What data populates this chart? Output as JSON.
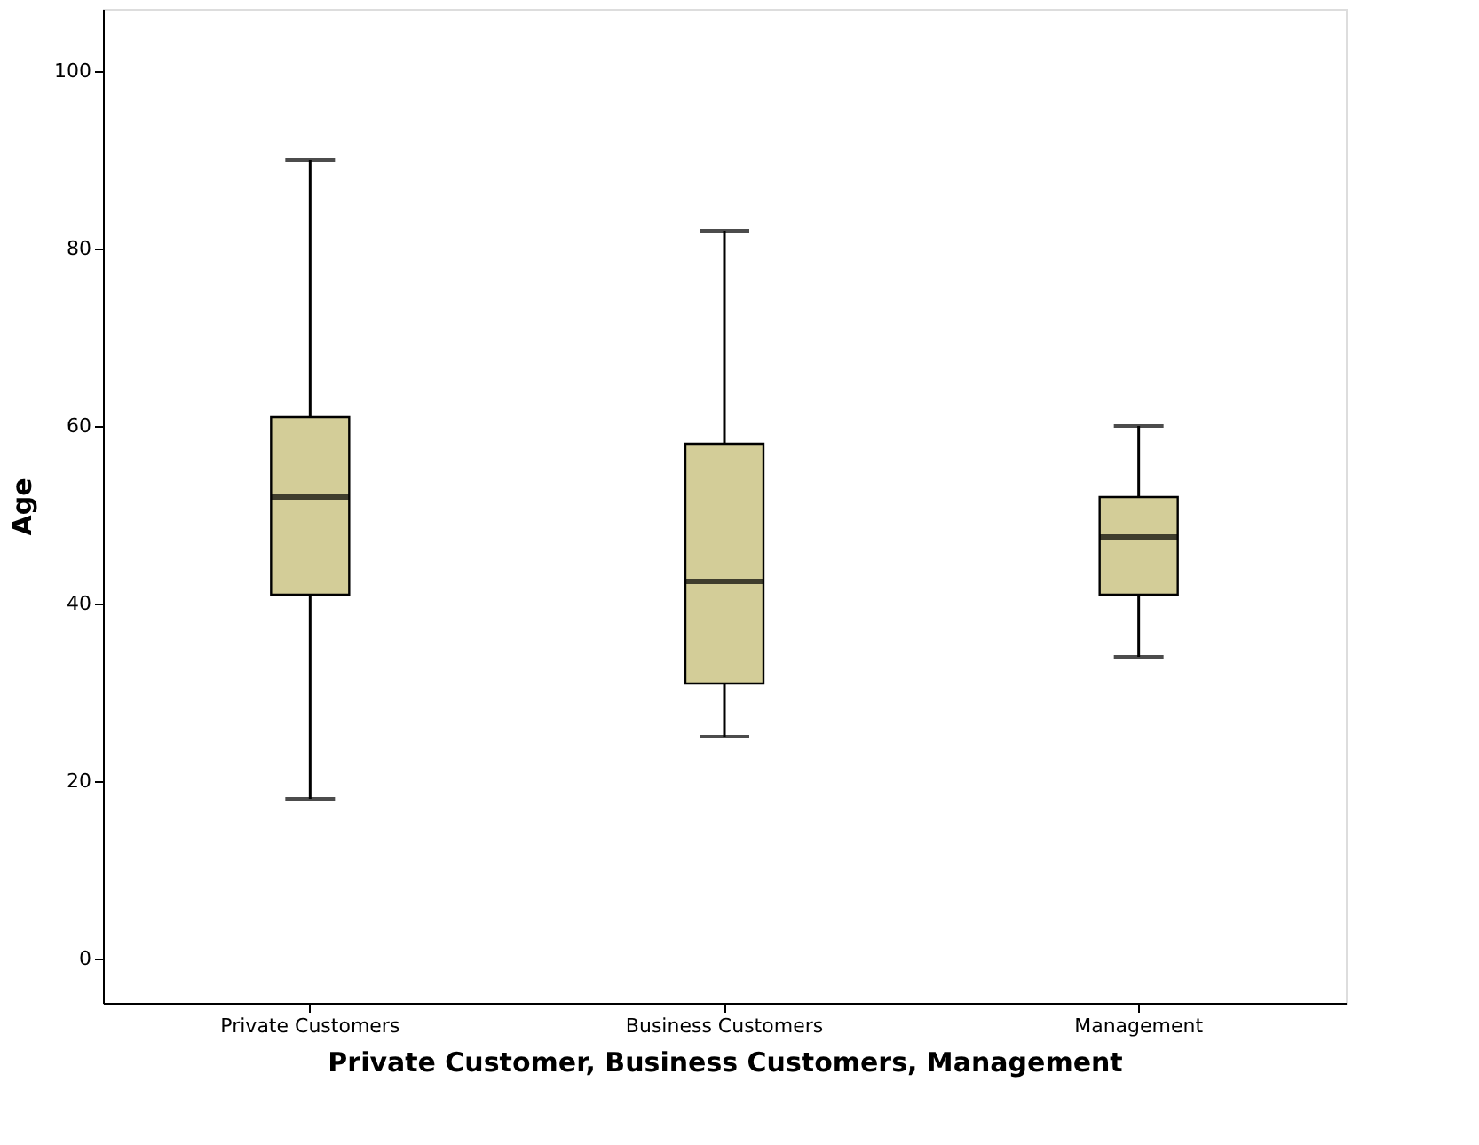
{
  "chart_data": {
    "type": "box",
    "xlabel": "Private Customer, Business Customers, Management",
    "ylabel": "Age",
    "categories": [
      "Private Customers",
      "Business Customers",
      "Management"
    ],
    "boxes": [
      {
        "low": 18,
        "q1": 41,
        "median": 52,
        "q3": 61,
        "high": 90
      },
      {
        "low": 25,
        "q1": 31,
        "median": 42.5,
        "q3": 58,
        "high": 82
      },
      {
        "low": 34,
        "q1": 41,
        "median": 47.5,
        "q3": 52,
        "high": 60
      }
    ],
    "color": "#d3cd98",
    "ylim": [
      -5,
      107
    ],
    "yticks": [
      0,
      20,
      40,
      60,
      80,
      100
    ],
    "grid": false
  }
}
